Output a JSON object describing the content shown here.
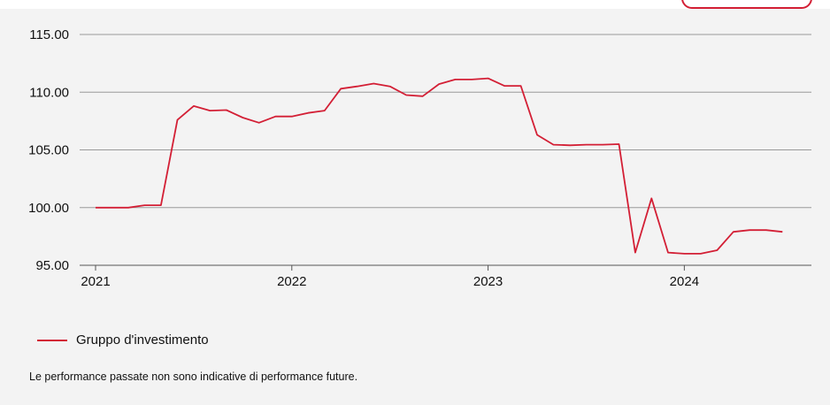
{
  "colors": {
    "series": "#d31f35",
    "grid": "#9a9a9a",
    "axis": "#555555",
    "background": "#f3f3f3"
  },
  "disclaimer": "Le performance passate non sono indicative di performance future.",
  "chart_data": {
    "type": "line",
    "title": "",
    "xlabel": "",
    "ylabel": "",
    "ylim": [
      95,
      115
    ],
    "yticks": [
      "115.00",
      "110.00",
      "105.00",
      "100.00",
      "95.00"
    ],
    "ytick_values": [
      115,
      110,
      105,
      100,
      95
    ],
    "xlim": [
      2021.0,
      2024.58
    ],
    "xticks": [
      "2021",
      "2022",
      "2023",
      "2024"
    ],
    "xtick_values": [
      2021,
      2022,
      2023,
      2024
    ],
    "grid": true,
    "legend_position": "bottom-left",
    "series": [
      {
        "name": "Gruppo d'investimento",
        "x": [
          2021.0,
          2021.083,
          2021.167,
          2021.25,
          2021.333,
          2021.417,
          2021.5,
          2021.583,
          2021.667,
          2021.75,
          2021.833,
          2021.917,
          2022.0,
          2022.083,
          2022.167,
          2022.25,
          2022.333,
          2022.417,
          2022.5,
          2022.583,
          2022.667,
          2022.75,
          2022.833,
          2022.917,
          2023.0,
          2023.083,
          2023.167,
          2023.25,
          2023.333,
          2023.417,
          2023.5,
          2023.583,
          2023.667,
          2023.75,
          2023.833,
          2023.917,
          2024.0,
          2024.083,
          2024.167,
          2024.25,
          2024.333,
          2024.417,
          2024.5
        ],
        "values": [
          100.0,
          100.0,
          100.0,
          100.2,
          100.2,
          107.6,
          108.8,
          108.4,
          108.45,
          107.8,
          107.35,
          107.9,
          107.9,
          108.2,
          108.4,
          110.3,
          110.5,
          110.75,
          110.5,
          109.75,
          109.65,
          110.7,
          111.1,
          111.1,
          111.2,
          110.55,
          110.55,
          106.3,
          105.45,
          105.4,
          105.45,
          105.45,
          105.5,
          96.1,
          100.8,
          96.1,
          96.0,
          96.0,
          96.3,
          97.9,
          98.05,
          98.05,
          97.9
        ]
      }
    ]
  }
}
